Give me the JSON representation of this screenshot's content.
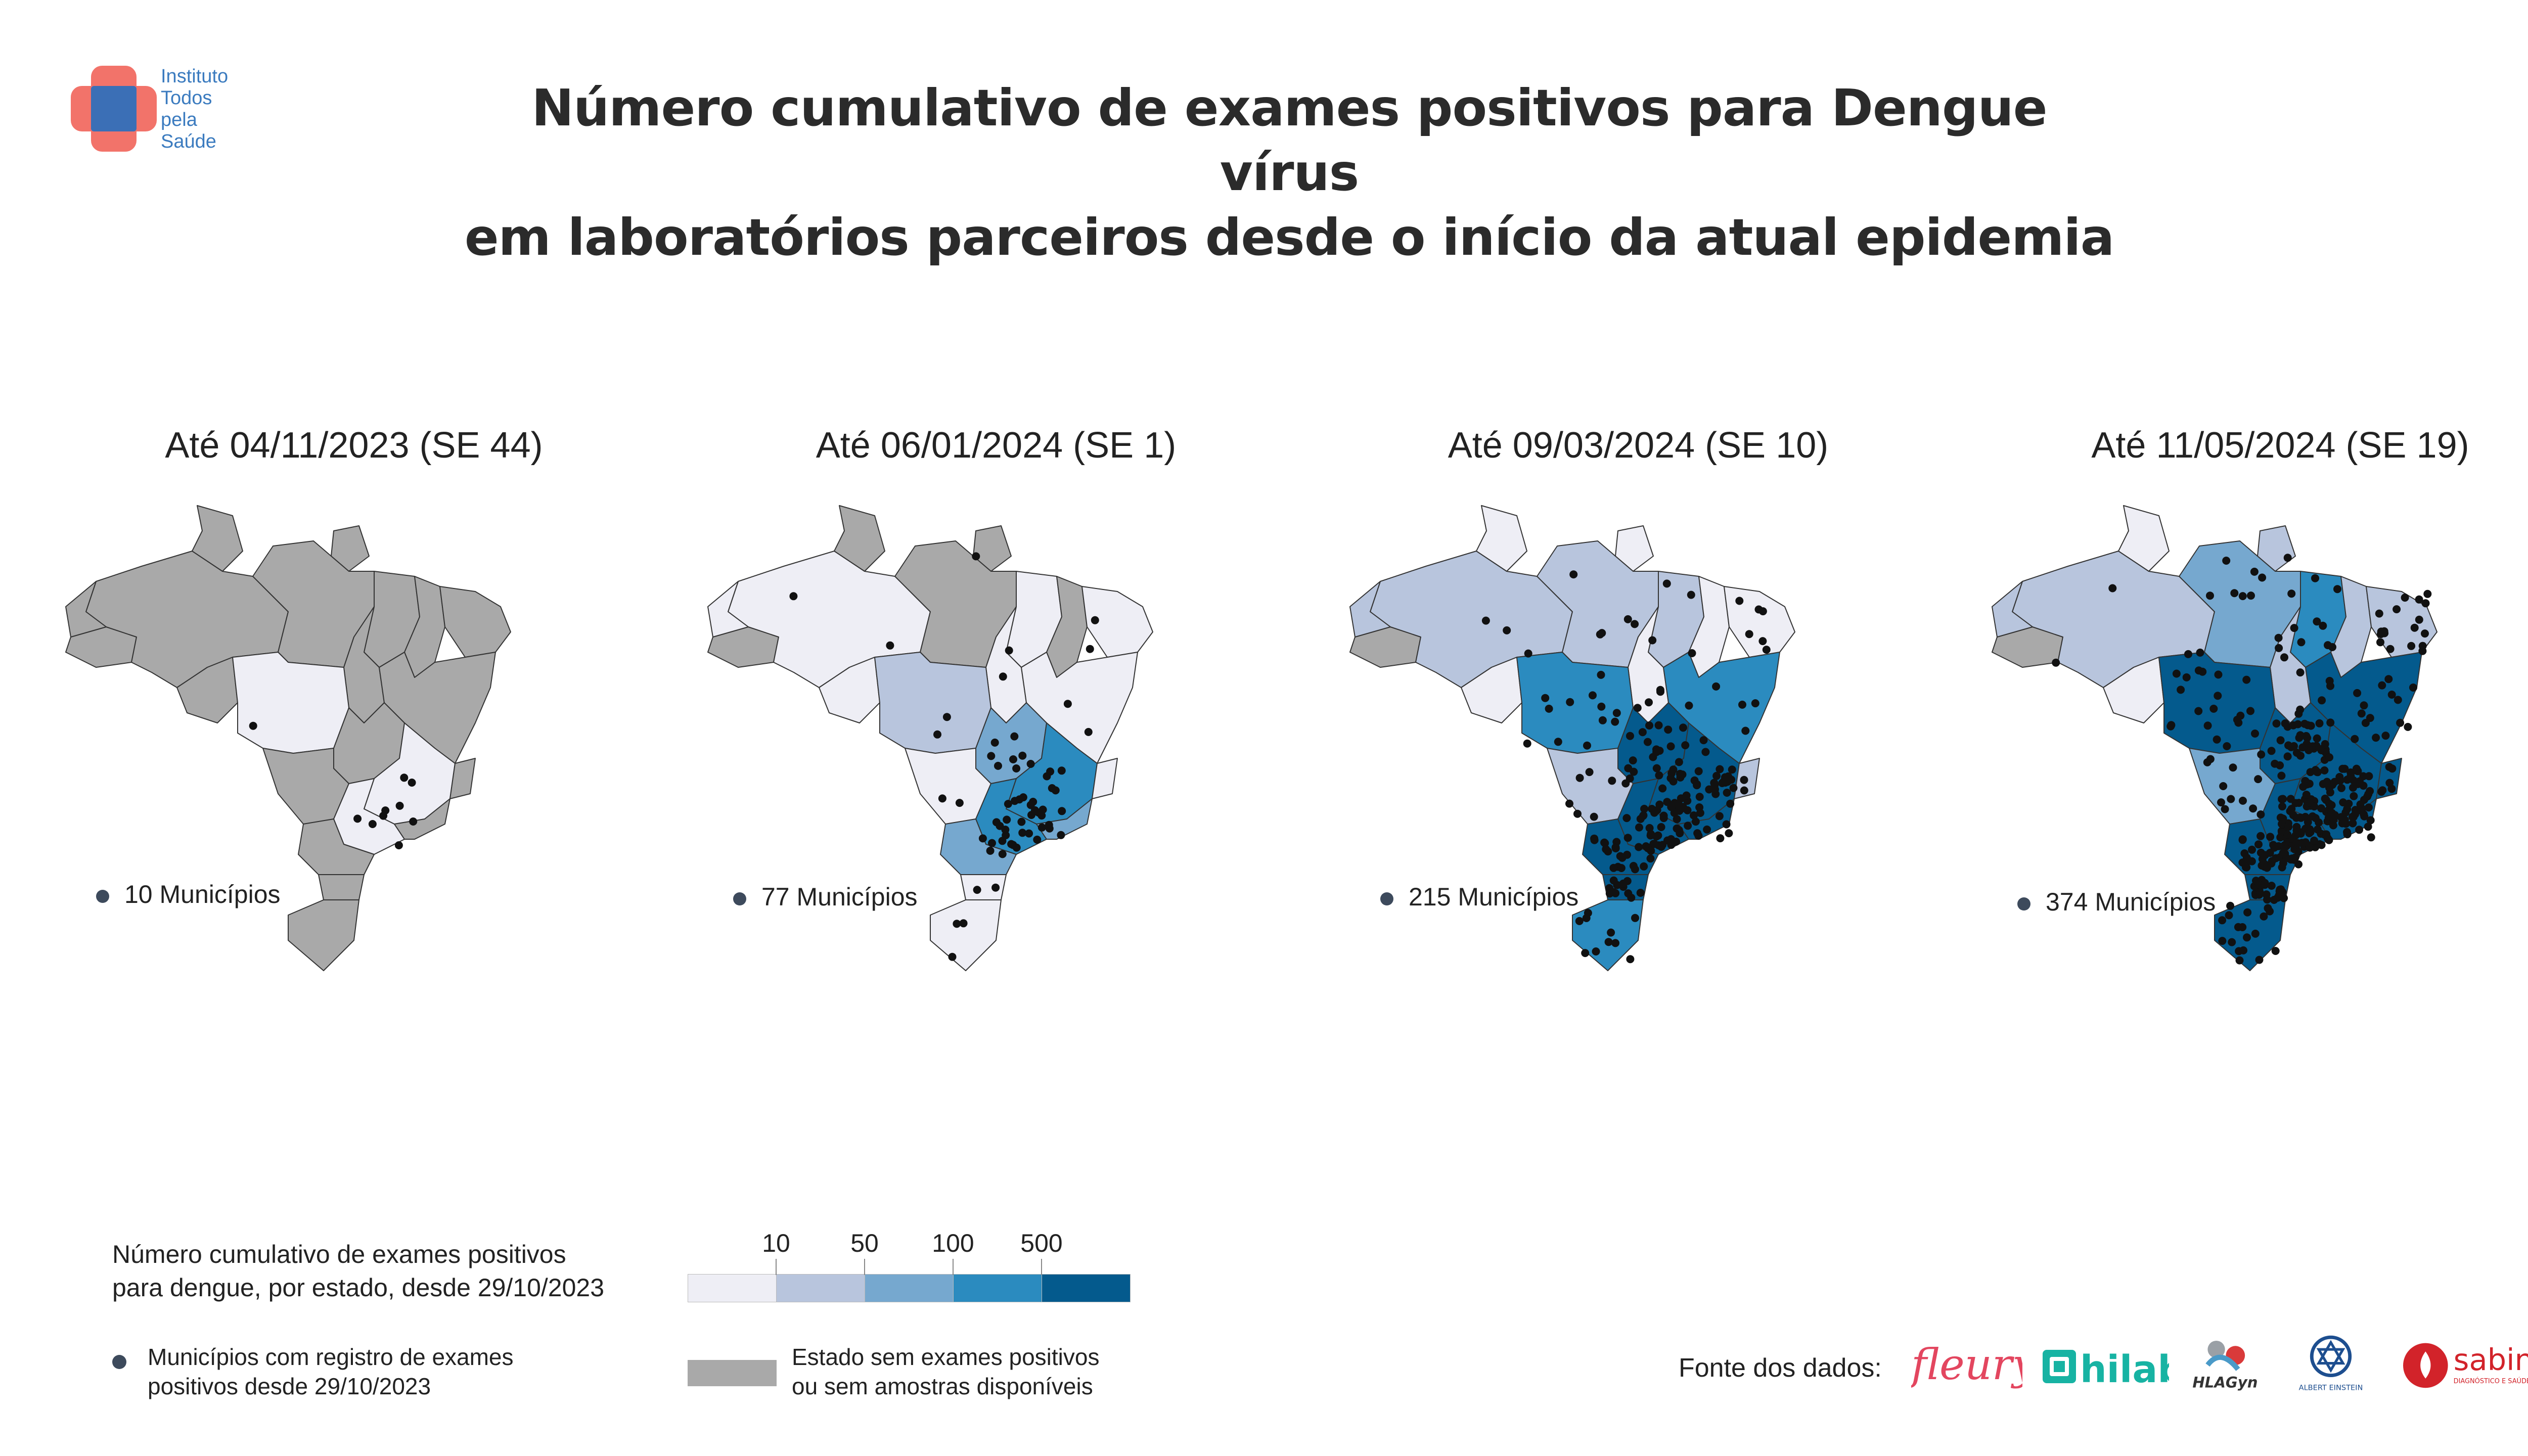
{
  "logo": {
    "lines": [
      "Instituto",
      "Todos",
      "pela",
      "Saúde"
    ]
  },
  "title": {
    "line1": "Número cumulativo de exames positivos para Dengue vírus",
    "line2": "em laboratórios parceiros desde o início da atual epidemia"
  },
  "colors": {
    "gray": "#a9a9a9",
    "bin0": "#eeeef5",
    "bin1": "#b8c5dd",
    "bin2": "#76a8cf",
    "bin3": "#2b8bbf",
    "bin4": "#045a8d",
    "dot": "#111111"
  },
  "panels": [
    {
      "title": "Até 04/11/2023 (SE 44)",
      "municipios": "10 Municípios",
      "fills": {
        "north": "gray",
        "amazonas": "gray",
        "mt": "bin0",
        "ms": "gray",
        "para": "gray",
        "tocantins": "gray",
        "goias": "gray",
        "mg": "bin0",
        "sp": "bin0",
        "rj": "gray",
        "es": "gray",
        "bahia": "gray",
        "pr": "gray",
        "sc": "gray",
        "rs": "gray",
        "ne": "gray",
        "acre": "gray",
        "rondonia": "gray",
        "roraima": "gray",
        "amapa": "gray",
        "ma": "gray",
        "pi": "gray"
      }
    },
    {
      "title": "Até 06/01/2024 (SE 1)",
      "municipios": "77 Municípios",
      "fills": {
        "north": "bin0",
        "amazonas": "bin0",
        "mt": "bin1",
        "ms": "bin0",
        "para": "gray",
        "tocantins": "bin0",
        "goias": "bin2",
        "mg": "bin3",
        "sp": "bin3",
        "rj": "bin2",
        "es": "bin0",
        "bahia": "bin0",
        "pr": "bin2",
        "sc": "bin0",
        "rs": "bin0",
        "ne": "bin0",
        "acre": "gray",
        "rondonia": "bin0",
        "roraima": "gray",
        "amapa": "gray",
        "ma": "bin0",
        "pi": "gray"
      }
    },
    {
      "title": "Até 09/03/2024 (SE 10)",
      "municipios": "215 Municípios",
      "fills": {
        "north": "bin1",
        "amazonas": "bin1",
        "mt": "bin3",
        "ms": "bin1",
        "para": "bin1",
        "tocantins": "bin0",
        "goias": "bin4",
        "mg": "bin4",
        "sp": "bin4",
        "rj": "bin4",
        "es": "bin1",
        "bahia": "bin3",
        "pr": "bin4",
        "sc": "bin4",
        "rs": "bin3",
        "ne": "bin0",
        "acre": "gray",
        "rondonia": "bin0",
        "roraima": "bin0",
        "amapa": "bin0",
        "ma": "bin1",
        "pi": "bin0"
      }
    },
    {
      "title": "Até 11/05/2024 (SE 19)",
      "municipios": "374 Municípios",
      "fills": {
        "north": "bin1",
        "amazonas": "bin1",
        "mt": "bin4",
        "ms": "bin2",
        "para": "bin2",
        "tocantins": "bin1",
        "goias": "bin4",
        "mg": "bin4",
        "sp": "bin4",
        "rj": "bin4",
        "es": "bin4",
        "bahia": "bin4",
        "pr": "bin4",
        "sc": "bin4",
        "rs": "bin4",
        "ne": "bin1",
        "acre": "gray",
        "rondonia": "bin0",
        "roraima": "bin0",
        "amapa": "bin1",
        "ma": "bin3",
        "pi": "bin1"
      }
    }
  ],
  "legend": {
    "title_line1": "Número cumulativo de exames positivos",
    "title_line2": "para dengue, por estado, desde 29/10/2023",
    "breaks": [
      "10",
      "50",
      "100",
      "500"
    ],
    "dot_line1": "Municípios com registro de exames",
    "dot_line2": "positivos desde 29/10/2023",
    "gray_line1": "Estado sem exames positivos",
    "gray_line2": "ou sem amostras disponíveis"
  },
  "source": {
    "label": "Fonte dos dados:",
    "logos": [
      {
        "name": "fleury-logo",
        "text": "fleury",
        "color": "#e3465f"
      },
      {
        "name": "hilab-logo",
        "text": "hilab",
        "color": "#17b3a3"
      },
      {
        "name": "hlagyn-logo",
        "text": "HLAGyn",
        "color": "#333333"
      },
      {
        "name": "einstein-logo",
        "text": "ALBERT EINSTEIN",
        "color": "#1d4e8f"
      },
      {
        "name": "sabin-logo",
        "text": "sabin",
        "color": "#d2232a",
        "sub": "DIAGNÓSTICO E SAÚDE"
      }
    ]
  }
}
